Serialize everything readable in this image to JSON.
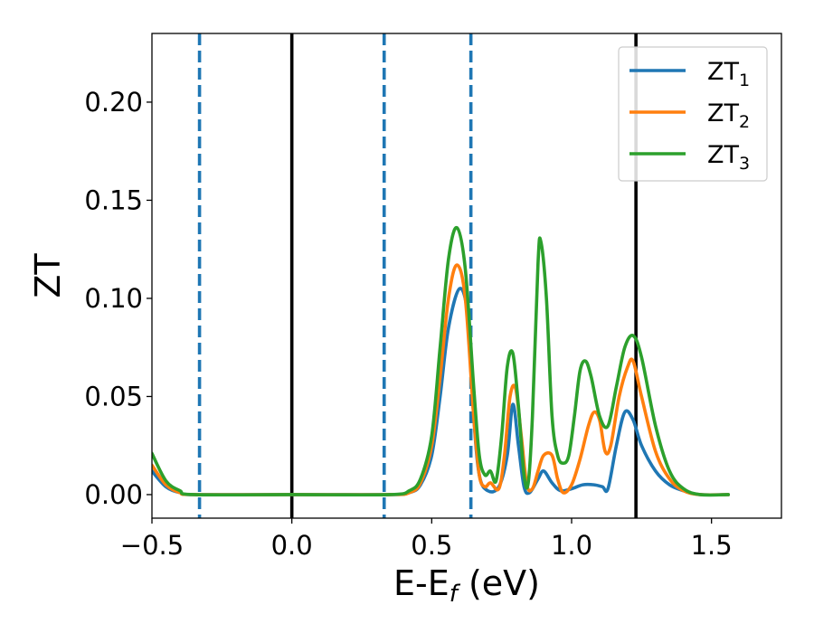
{
  "chart_data": {
    "type": "line",
    "xlabel": {
      "main": "E-E",
      "sub": "f",
      "suffix": " (eV)"
    },
    "ylabel": "ZT",
    "xlim": [
      -0.5,
      1.75
    ],
    "ylim": [
      -0.012,
      0.235
    ],
    "x_ticks": [
      -0.5,
      0.0,
      0.5,
      1.0,
      1.5
    ],
    "x_tick_labels": [
      "−0.5",
      "0.0",
      "0.5",
      "1.0",
      "1.5"
    ],
    "y_ticks": [
      0.0,
      0.05,
      0.1,
      0.15,
      0.2
    ],
    "y_tick_labels": [
      "0.00",
      "0.05",
      "0.10",
      "0.15",
      "0.20"
    ],
    "grid": false,
    "legend_position": "top-right",
    "series": [
      {
        "name": "ZT",
        "sub": "1",
        "color": "#1f77b4",
        "points": [
          [
            -0.5,
            0.012
          ],
          [
            -0.45,
            0.004
          ],
          [
            -0.4,
            0.001
          ],
          [
            -0.35,
            0.0
          ],
          [
            0.0,
            0.0
          ],
          [
            0.35,
            0.0
          ],
          [
            0.42,
            0.001
          ],
          [
            0.46,
            0.005
          ],
          [
            0.5,
            0.02
          ],
          [
            0.53,
            0.05
          ],
          [
            0.56,
            0.085
          ],
          [
            0.6,
            0.105
          ],
          [
            0.63,
            0.09
          ],
          [
            0.65,
            0.04
          ],
          [
            0.67,
            0.01
          ],
          [
            0.7,
            0.002
          ],
          [
            0.74,
            0.004
          ],
          [
            0.77,
            0.02
          ],
          [
            0.79,
            0.046
          ],
          [
            0.81,
            0.025
          ],
          [
            0.83,
            0.004
          ],
          [
            0.85,
            0.001
          ],
          [
            0.88,
            0.008
          ],
          [
            0.9,
            0.012
          ],
          [
            0.93,
            0.006
          ],
          [
            0.96,
            0.002
          ],
          [
            1.0,
            0.003
          ],
          [
            1.04,
            0.005
          ],
          [
            1.08,
            0.005
          ],
          [
            1.11,
            0.004
          ],
          [
            1.13,
            0.003
          ],
          [
            1.16,
            0.025
          ],
          [
            1.19,
            0.042
          ],
          [
            1.22,
            0.038
          ],
          [
            1.25,
            0.025
          ],
          [
            1.3,
            0.012
          ],
          [
            1.35,
            0.005
          ],
          [
            1.4,
            0.002
          ],
          [
            1.46,
            0.0
          ],
          [
            1.56,
            0.0
          ]
        ]
      },
      {
        "name": "ZT",
        "sub": "2",
        "color": "#ff7f0e",
        "points": [
          [
            -0.5,
            0.015
          ],
          [
            -0.45,
            0.005
          ],
          [
            -0.4,
            0.001
          ],
          [
            -0.35,
            0.0
          ],
          [
            0.0,
            0.0
          ],
          [
            0.35,
            0.0
          ],
          [
            0.42,
            0.001
          ],
          [
            0.46,
            0.006
          ],
          [
            0.5,
            0.025
          ],
          [
            0.53,
            0.06
          ],
          [
            0.56,
            0.1
          ],
          [
            0.59,
            0.117
          ],
          [
            0.62,
            0.1
          ],
          [
            0.65,
            0.04
          ],
          [
            0.67,
            0.01
          ],
          [
            0.69,
            0.004
          ],
          [
            0.71,
            0.006
          ],
          [
            0.74,
            0.003
          ],
          [
            0.76,
            0.02
          ],
          [
            0.78,
            0.05
          ],
          [
            0.8,
            0.054
          ],
          [
            0.82,
            0.03
          ],
          [
            0.84,
            0.005
          ],
          [
            0.86,
            0.003
          ],
          [
            0.88,
            0.012
          ],
          [
            0.9,
            0.02
          ],
          [
            0.93,
            0.02
          ],
          [
            0.95,
            0.008
          ],
          [
            0.97,
            0.001
          ],
          [
            1.0,
            0.005
          ],
          [
            1.03,
            0.018
          ],
          [
            1.06,
            0.035
          ],
          [
            1.08,
            0.042
          ],
          [
            1.1,
            0.038
          ],
          [
            1.12,
            0.022
          ],
          [
            1.14,
            0.025
          ],
          [
            1.17,
            0.05
          ],
          [
            1.2,
            0.065
          ],
          [
            1.22,
            0.068
          ],
          [
            1.25,
            0.05
          ],
          [
            1.3,
            0.022
          ],
          [
            1.35,
            0.008
          ],
          [
            1.4,
            0.002
          ],
          [
            1.46,
            0.0
          ],
          [
            1.56,
            0.0
          ]
        ]
      },
      {
        "name": "ZT",
        "sub": "3",
        "color": "#2ca02c",
        "points": [
          [
            -0.5,
            0.021
          ],
          [
            -0.45,
            0.007
          ],
          [
            -0.4,
            0.002
          ],
          [
            -0.35,
            0.0
          ],
          [
            0.0,
            0.0
          ],
          [
            0.35,
            0.0
          ],
          [
            0.42,
            0.002
          ],
          [
            0.46,
            0.008
          ],
          [
            0.5,
            0.03
          ],
          [
            0.53,
            0.075
          ],
          [
            0.56,
            0.12
          ],
          [
            0.59,
            0.136
          ],
          [
            0.62,
            0.115
          ],
          [
            0.65,
            0.055
          ],
          [
            0.67,
            0.02
          ],
          [
            0.69,
            0.01
          ],
          [
            0.71,
            0.012
          ],
          [
            0.73,
            0.007
          ],
          [
            0.75,
            0.03
          ],
          [
            0.77,
            0.065
          ],
          [
            0.79,
            0.072
          ],
          [
            0.81,
            0.045
          ],
          [
            0.83,
            0.01
          ],
          [
            0.845,
            0.006
          ],
          [
            0.86,
            0.04
          ],
          [
            0.88,
            0.118
          ],
          [
            0.89,
            0.129
          ],
          [
            0.91,
            0.1
          ],
          [
            0.93,
            0.04
          ],
          [
            0.95,
            0.02
          ],
          [
            0.97,
            0.016
          ],
          [
            0.99,
            0.02
          ],
          [
            1.01,
            0.04
          ],
          [
            1.03,
            0.063
          ],
          [
            1.05,
            0.068
          ],
          [
            1.07,
            0.06
          ],
          [
            1.1,
            0.04
          ],
          [
            1.13,
            0.035
          ],
          [
            1.16,
            0.055
          ],
          [
            1.19,
            0.075
          ],
          [
            1.22,
            0.081
          ],
          [
            1.25,
            0.07
          ],
          [
            1.3,
            0.035
          ],
          [
            1.35,
            0.012
          ],
          [
            1.4,
            0.003
          ],
          [
            1.46,
            0.0
          ],
          [
            1.56,
            0.0
          ]
        ]
      }
    ],
    "vlines": [
      {
        "x": 0.0,
        "style": "solid",
        "color": "#000000"
      },
      {
        "x": 1.23,
        "style": "solid",
        "color": "#000000"
      },
      {
        "x": -0.33,
        "style": "dashed",
        "color": "#1f77b4"
      },
      {
        "x": 0.33,
        "style": "dashed",
        "color": "#1f77b4"
      },
      {
        "x": 0.64,
        "style": "dashed",
        "color": "#1f77b4"
      }
    ]
  }
}
